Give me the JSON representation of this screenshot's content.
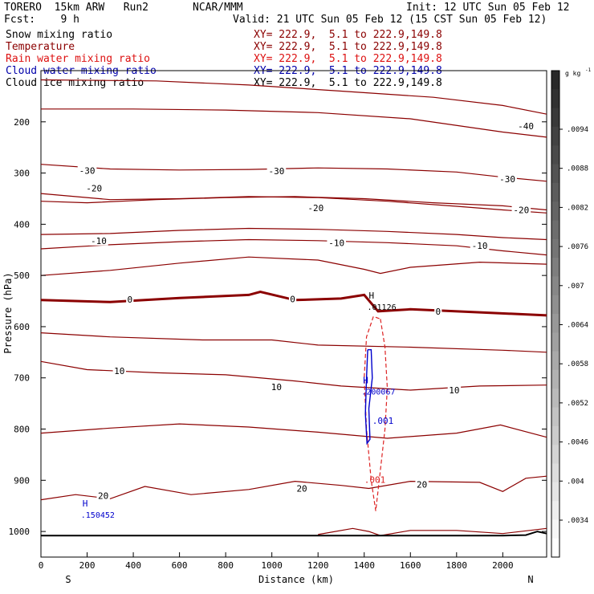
{
  "header": {
    "model": "TORERO  15km ARW   Run2",
    "org": "NCAR/MMM",
    "init": "Init: 12 UTC Sun 05 Feb 12",
    "fcst": "Fcst:    9 h",
    "valid": "Valid: 21 UTC Sun 05 Feb 12 (15 CST Sun 05 Feb 12)"
  },
  "fields": [
    {
      "name": "Snow mixing ratio",
      "xy": "XY= 222.9,  5.1 to 222.9,149.8",
      "color": "#000000",
      "xy_color": "#8b0000"
    },
    {
      "name": "Temperature",
      "xy": "XY= 222.9,  5.1 to 222.9,149.8",
      "color": "#8b0000",
      "xy_color": "#8b0000"
    },
    {
      "name": "Rain water mixing ratio",
      "xy": "XY= 222.9,  5.1 to 222.9,149.8",
      "color": "#dd1111",
      "xy_color": "#dd1111"
    },
    {
      "name": "Cloud water mixing ratio",
      "xy": "XY= 222.9,  5.1 to 222.9,149.8",
      "color": "#0000aa",
      "xy_color": "#0000aa"
    },
    {
      "name": "Cloud ice mixing ratio",
      "xy": "XY= 222.9,  5.1 to 222.9,149.8",
      "color": "#000000",
      "xy_color": "#000000"
    }
  ],
  "colors": {
    "temperature": "#8b0000",
    "rain": "#dd2222",
    "cloud_water": "#0000cc",
    "ground": "#000000"
  },
  "chart_data": {
    "type": "cross-section contour",
    "xlabel": "Distance (km)",
    "ylabel": "Pressure (hPa)",
    "xlim": [
      0,
      2190
    ],
    "ylim": [
      1050,
      100
    ],
    "x_ticks": [
      0,
      200,
      400,
      600,
      800,
      1000,
      1200,
      1400,
      1600,
      1800,
      2000
    ],
    "y_ticks": [
      200,
      300,
      400,
      500,
      600,
      700,
      800,
      900,
      1000
    ],
    "left_end": "S",
    "right_end": "N",
    "colorbar": {
      "unit": "g kg",
      "exponent": "-1",
      "ticks": [
        ".0094",
        ".0088",
        ".0082",
        ".0076",
        ".007",
        ".0064",
        ".0058",
        ".0052",
        ".0046",
        ".004",
        ".0034"
      ]
    },
    "temperature_contours": [
      {
        "level": -40,
        "label": "-40",
        "label_at": [
          2100,
          208
        ],
        "points": [
          [
            0,
            118
          ],
          [
            500,
            120
          ],
          [
            900,
            128
          ],
          [
            1300,
            140
          ],
          [
            1700,
            152
          ],
          [
            2000,
            168
          ],
          [
            2190,
            185
          ]
        ]
      },
      {
        "level": -35,
        "points": [
          [
            0,
            175
          ],
          [
            400,
            175
          ],
          [
            800,
            177
          ],
          [
            1200,
            182
          ],
          [
            1600,
            194
          ],
          [
            2000,
            220
          ],
          [
            2190,
            230
          ]
        ]
      },
      {
        "level": -30,
        "label": "-30",
        "label_at": [
          200,
          295
        ],
        "points": [
          [
            0,
            283
          ],
          [
            300,
            292
          ],
          [
            600,
            294
          ],
          [
            900,
            293
          ],
          [
            1200,
            290
          ],
          [
            1500,
            292
          ],
          [
            1800,
            298
          ],
          [
            2000,
            308
          ],
          [
            2190,
            316
          ]
        ]
      },
      {
        "level": -25,
        "points": [
          [
            0,
            340
          ],
          [
            300,
            352
          ],
          [
            600,
            350
          ],
          [
            900,
            346
          ],
          [
            1200,
            348
          ],
          [
            1500,
            355
          ],
          [
            1800,
            365
          ],
          [
            2000,
            372
          ],
          [
            2190,
            378
          ]
        ]
      },
      {
        "level": -20,
        "label": "-20",
        "label_at": [
          230,
          330
        ],
        "points": [
          [
            0,
            355
          ],
          [
            200,
            358
          ],
          [
            500,
            352
          ],
          [
            800,
            348
          ],
          [
            1100,
            346
          ],
          [
            1400,
            350
          ],
          [
            1700,
            358
          ],
          [
            2000,
            364
          ],
          [
            2190,
            372
          ]
        ]
      },
      {
        "level": -15,
        "points": [
          [
            0,
            420
          ],
          [
            300,
            418
          ],
          [
            600,
            412
          ],
          [
            900,
            408
          ],
          [
            1200,
            410
          ],
          [
            1500,
            414
          ],
          [
            1800,
            420
          ],
          [
            2000,
            426
          ],
          [
            2190,
            430
          ]
        ]
      },
      {
        "level": -10,
        "label": "-10",
        "label_at": [
          250,
          432
        ],
        "points": [
          [
            0,
            448
          ],
          [
            300,
            440
          ],
          [
            600,
            434
          ],
          [
            900,
            430
          ],
          [
            1200,
            432
          ],
          [
            1500,
            436
          ],
          [
            1800,
            442
          ],
          [
            2000,
            452
          ],
          [
            2190,
            460
          ]
        ]
      },
      {
        "level": -5,
        "points": [
          [
            0,
            500
          ],
          [
            300,
            490
          ],
          [
            600,
            476
          ],
          [
            900,
            464
          ],
          [
            1200,
            470
          ],
          [
            1400,
            488
          ],
          [
            1470,
            496
          ],
          [
            1600,
            484
          ],
          [
            1900,
            474
          ],
          [
            2190,
            478
          ]
        ]
      },
      {
        "level": 0,
        "label": "0",
        "label_at": [
          385,
          547
        ],
        "points": [
          [
            0,
            548
          ],
          [
            300,
            552
          ],
          [
            600,
            544
          ],
          [
            900,
            538
          ],
          [
            950,
            532
          ],
          [
            1100,
            548
          ],
          [
            1300,
            545
          ],
          [
            1400,
            538
          ],
          [
            1460,
            570
          ],
          [
            1600,
            566
          ],
          [
            1900,
            572
          ],
          [
            2190,
            578
          ]
        ]
      },
      {
        "level": 5,
        "points": [
          [
            0,
            612
          ],
          [
            300,
            620
          ],
          [
            700,
            626
          ],
          [
            1000,
            626
          ],
          [
            1200,
            636
          ],
          [
            1600,
            640
          ],
          [
            2000,
            646
          ],
          [
            2190,
            650
          ]
        ]
      },
      {
        "level": 10,
        "label": "10",
        "label_at": [
          340,
          686
        ],
        "points": [
          [
            0,
            668
          ],
          [
            200,
            684
          ],
          [
            500,
            690
          ],
          [
            800,
            694
          ],
          [
            1100,
            706
          ],
          [
            1300,
            716
          ],
          [
            1600,
            724
          ],
          [
            1900,
            716
          ],
          [
            2190,
            714
          ]
        ]
      },
      {
        "level": 15,
        "points": [
          [
            0,
            808
          ],
          [
            300,
            798
          ],
          [
            600,
            790
          ],
          [
            900,
            796
          ],
          [
            1200,
            806
          ],
          [
            1500,
            818
          ],
          [
            1800,
            808
          ],
          [
            1990,
            792
          ],
          [
            2190,
            816
          ]
        ]
      },
      {
        "level": 20,
        "label": "20",
        "label_at": [
          270,
          930
        ],
        "points": [
          [
            0,
            938
          ],
          [
            150,
            928
          ],
          [
            300,
            936
          ],
          [
            450,
            912
          ],
          [
            650,
            928
          ],
          [
            900,
            918
          ],
          [
            1100,
            902
          ],
          [
            1300,
            910
          ],
          [
            1420,
            916
          ],
          [
            1600,
            902
          ],
          [
            1900,
            904
          ],
          [
            2000,
            922
          ],
          [
            2100,
            896
          ],
          [
            2190,
            892
          ]
        ]
      },
      {
        "level": 25,
        "points": [
          [
            1200,
            1006
          ],
          [
            1350,
            994
          ],
          [
            1420,
            1000
          ],
          [
            1470,
            1008
          ],
          [
            1600,
            998
          ],
          [
            1800,
            998
          ],
          [
            2000,
            1004
          ],
          [
            2190,
            994
          ]
        ]
      }
    ],
    "ground_pressure": [
      [
        0,
        1008
      ],
      [
        1000,
        1008
      ],
      [
        2000,
        1008
      ],
      [
        2100,
        1007
      ],
      [
        2150,
        1000
      ],
      [
        2190,
        1004
      ]
    ],
    "rain_contour": {
      "label": ".001",
      "points": [
        [
          1470,
          585
        ],
        [
          1490,
          640
        ],
        [
          1500,
          720
        ],
        [
          1490,
          800
        ],
        [
          1470,
          880
        ],
        [
          1450,
          960
        ],
        [
          1430,
          900
        ],
        [
          1410,
          800
        ],
        [
          1400,
          700
        ],
        [
          1410,
          620
        ],
        [
          1440,
          580
        ],
        [
          1470,
          585
        ]
      ]
    },
    "cloud_water_contour": {
      "label": ".001",
      "points": [
        [
          1415,
          645
        ],
        [
          1430,
          645
        ],
        [
          1435,
          700
        ],
        [
          1420,
          760
        ],
        [
          1425,
          820
        ],
        [
          1412,
          828
        ],
        [
          1405,
          770
        ],
        [
          1410,
          700
        ],
        [
          1415,
          645
        ]
      ]
    },
    "markers": [
      {
        "letter": "H",
        "value": ".01126",
        "pressure": 548,
        "distance": 1420,
        "color": "#000000"
      },
      {
        "letter": "H",
        "value": ".200067",
        "pressure": 714,
        "distance": 1395,
        "color": "#0000cc"
      },
      {
        "letter": "H",
        "value": ".150452",
        "pressure": 954,
        "distance": 180,
        "color": "#0000cc"
      }
    ],
    "extra_labels": [
      {
        "text": "-30",
        "pressure": 296,
        "distance": 1020
      },
      {
        "text": "-30",
        "pressure": 312,
        "distance": 2020
      },
      {
        "text": "-20",
        "pressure": 368,
        "distance": 1190
      },
      {
        "text": "-20",
        "pressure": 372,
        "distance": 2080
      },
      {
        "text": "-10",
        "pressure": 436,
        "distance": 1280
      },
      {
        "text": "-10",
        "pressure": 442,
        "distance": 1900
      },
      {
        "text": "0",
        "pressure": 546,
        "distance": 1090
      },
      {
        "text": "0",
        "pressure": 570,
        "distance": 1720
      },
      {
        "text": "10",
        "pressure": 718,
        "distance": 1020
      },
      {
        "text": "10",
        "pressure": 724,
        "distance": 1790
      },
      {
        "text": "20",
        "pressure": 916,
        "distance": 1130
      },
      {
        "text": "20",
        "pressure": 908,
        "distance": 1650
      }
    ]
  }
}
